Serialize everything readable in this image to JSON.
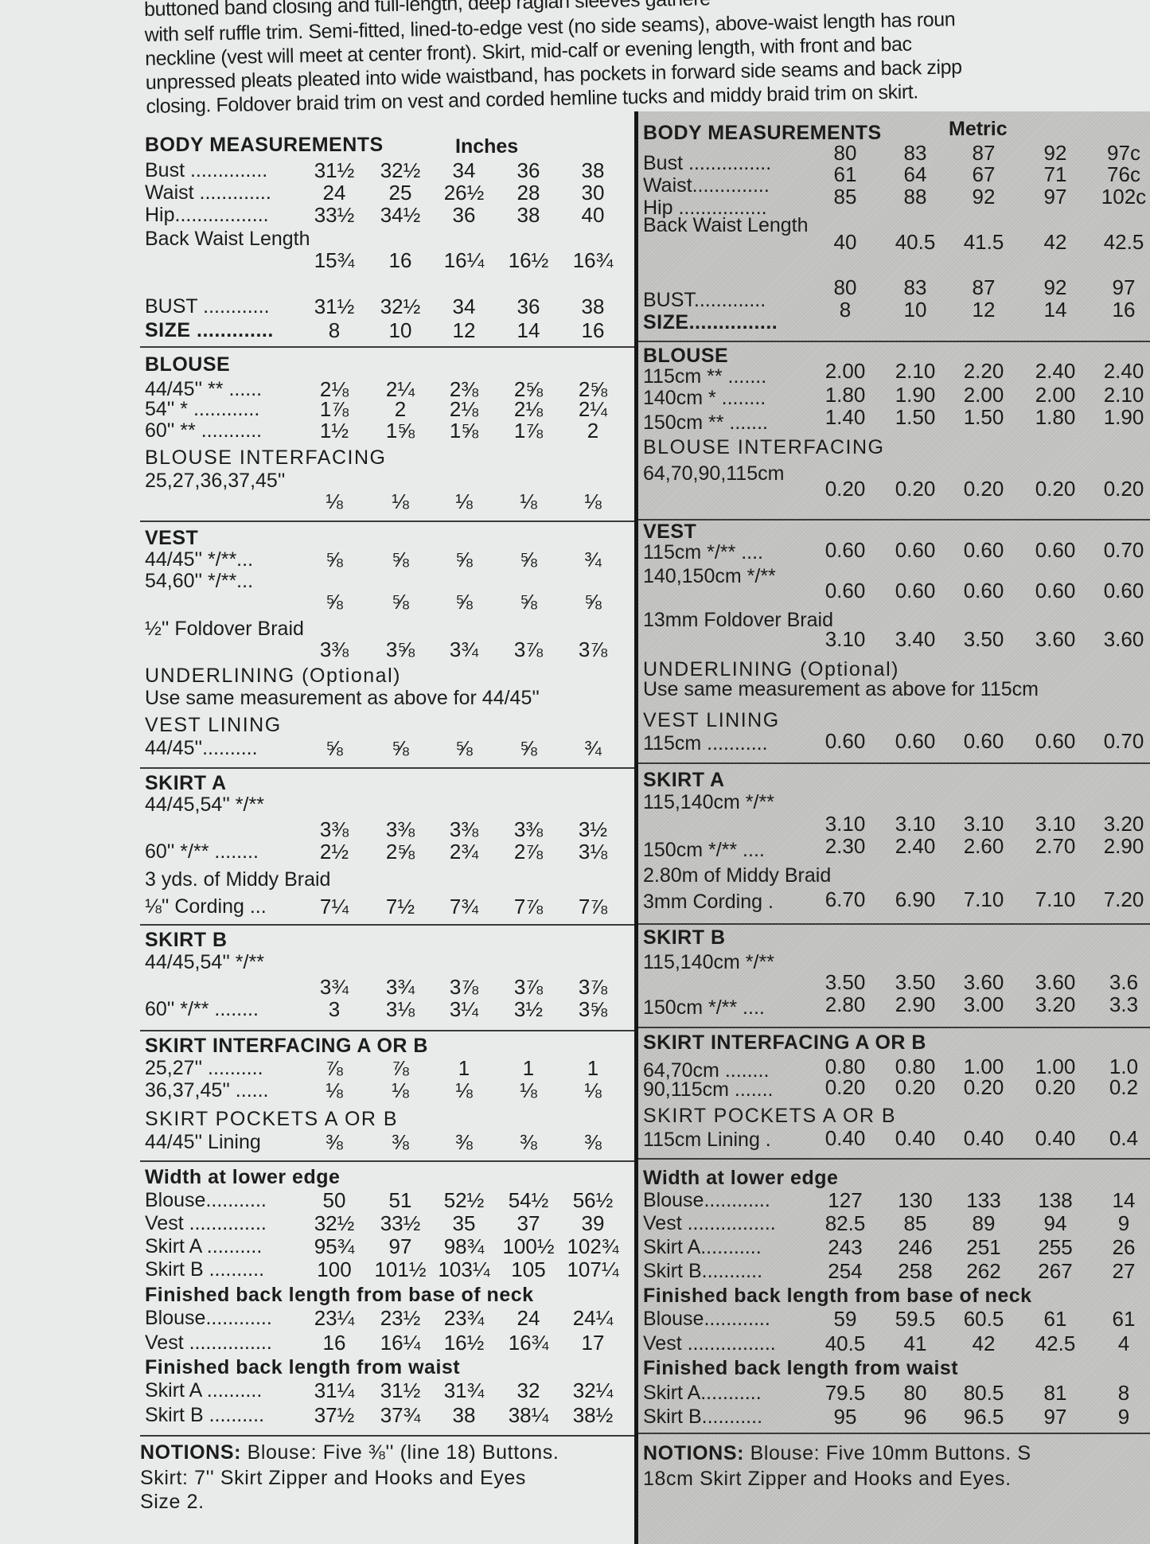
{
  "intro": {
    "lines": [
      "buttoned band closing and full-length, deep raglan sleeves gathere",
      "with self ruffle trim. Semi-fitted, lined-to-edge vest (no side seams), above-waist length has roun",
      "neckline (vest will meet at center front). Skirt, mid-calf or evening length, with front and bac",
      "unpressed pleats pleated into wide waistband, has pockets in forward side seams and back zipp",
      "closing. Foldover braid trim on vest and corded hemline tucks and middy braid trim on skirt."
    ]
  },
  "inches": {
    "unit": "Inches",
    "rows": [
      {
        "label": "BODY MEASUREMENTS",
        "kind": "section"
      },
      {
        "label": "Bust ..............",
        "values": [
          "31½",
          "32½",
          "34",
          "36",
          "38"
        ]
      },
      {
        "label": "Waist .............",
        "values": [
          "24",
          "25",
          "26½",
          "28",
          "30"
        ]
      },
      {
        "label": "Hip.................",
        "values": [
          "33½",
          "34½",
          "36",
          "38",
          "40"
        ]
      },
      {
        "label": "Back Waist Length",
        "values": [
          "15¾",
          "16",
          "16¼",
          "16½",
          "16¾"
        ]
      },
      {
        "label": "BUST ............",
        "values": [
          "31½",
          "32½",
          "34",
          "36",
          "38"
        ]
      },
      {
        "label": "SIZE .............",
        "kind": "section",
        "values": [
          "8",
          "10",
          "12",
          "14",
          "16"
        ]
      },
      {
        "label": "BLOUSE",
        "kind": "section"
      },
      {
        "label": "44/45'' ** ......",
        "values": [
          "2⅛",
          "2¼",
          "2⅜",
          "2⅝",
          "2⅝"
        ]
      },
      {
        "label": "54'' * ............",
        "values": [
          "1⅞",
          "2",
          "2⅛",
          "2⅛",
          "2¼"
        ]
      },
      {
        "label": "60'' ** ...........",
        "values": [
          "1½",
          "1⅝",
          "1⅝",
          "1⅞",
          "2"
        ]
      },
      {
        "label": "BLOUSE INTERFACING",
        "kind": "subsection"
      },
      {
        "label": "25,27,36,37,45''",
        "values": [
          "⅛",
          "⅛",
          "⅛",
          "⅛",
          "⅛"
        ]
      },
      {
        "label": "VEST",
        "kind": "section"
      },
      {
        "label": "44/45'' */**...",
        "values": [
          "⅝",
          "⅝",
          "⅝",
          "⅝",
          "¾"
        ]
      },
      {
        "label": "54,60'' */**...",
        "values": [
          "⅝",
          "⅝",
          "⅝",
          "⅝",
          "⅝"
        ]
      },
      {
        "label": "½'' Foldover Braid",
        "values": [
          "3⅜",
          "3⅝",
          "3¾",
          "3⅞",
          "3⅞"
        ]
      },
      {
        "label": "UNDERLINING (Optional)",
        "kind": "subsection"
      },
      {
        "label": "Use same measurement as above for 44/45''"
      },
      {
        "label": "VEST LINING",
        "kind": "subsection"
      },
      {
        "label": "44/45''..........",
        "values": [
          "⅝",
          "⅝",
          "⅝",
          "⅝",
          "¾"
        ]
      },
      {
        "label": "SKIRT A",
        "kind": "section"
      },
      {
        "label": "44/45,54'' */**",
        "values": [
          "3⅜",
          "3⅜",
          "3⅜",
          "3⅜",
          "3½"
        ]
      },
      {
        "label": "60'' */** ........",
        "values": [
          "2½",
          "2⅝",
          "2¾",
          "2⅞",
          "3⅛"
        ]
      },
      {
        "label": "3 yds. of Middy Braid"
      },
      {
        "label": "⅛'' Cording ...",
        "values": [
          "7¼",
          "7½",
          "7¾",
          "7⅞",
          "7⅞"
        ]
      },
      {
        "label": "SKIRT B",
        "kind": "section"
      },
      {
        "label": "44/45,54'' */**",
        "values": [
          "3¾",
          "3¾",
          "3⅞",
          "3⅞",
          "3⅞"
        ]
      },
      {
        "label": "60'' */** ........",
        "values": [
          "3",
          "3⅛",
          "3¼",
          "3½",
          "3⅝"
        ]
      },
      {
        "label": "SKIRT INTERFACING A OR B",
        "kind": "section"
      },
      {
        "label": "25,27'' ..........",
        "values": [
          "⅞",
          "⅞",
          "1",
          "1",
          "1"
        ]
      },
      {
        "label": "36,37,45'' ......",
        "values": [
          "⅛",
          "⅛",
          "⅛",
          "⅛",
          "⅛"
        ]
      },
      {
        "label": "SKIRT POCKETS A OR B",
        "kind": "subsection"
      },
      {
        "label": "44/45'' Lining",
        "values": [
          "⅜",
          "⅜",
          "⅜",
          "⅜",
          "⅜"
        ]
      },
      {
        "label": "Width at lower edge",
        "kind": "section"
      },
      {
        "label": "Blouse...........",
        "values": [
          "50",
          "51",
          "52½",
          "54½",
          "56½"
        ]
      },
      {
        "label": "Vest ..............",
        "values": [
          "32½",
          "33½",
          "35",
          "37",
          "39"
        ]
      },
      {
        "label": "Skirt A ..........",
        "values": [
          "95¾",
          "97",
          "98¾",
          "100½",
          "102¾"
        ]
      },
      {
        "label": "Skirt B ..........",
        "values": [
          "100",
          "101½",
          "103¼",
          "105",
          "107¼"
        ]
      },
      {
        "label": "Finished back length from base of neck",
        "kind": "section"
      },
      {
        "label": "Blouse............",
        "values": [
          "23¼",
          "23½",
          "23¾",
          "24",
          "24¼"
        ]
      },
      {
        "label": "Vest ...............",
        "values": [
          "16",
          "16¼",
          "16½",
          "16¾",
          "17"
        ]
      },
      {
        "label": "Finished back length from waist",
        "kind": "section"
      },
      {
        "label": "Skirt A ..........",
        "values": [
          "31¼",
          "31½",
          "31¾",
          "32",
          "32¼"
        ]
      },
      {
        "label": "Skirt B ..........",
        "values": [
          "37½",
          "37¾",
          "38",
          "38¼",
          "38½"
        ]
      }
    ],
    "notions": {
      "heading": "NOTIONS:",
      "lines": [
        "Blouse: Five ⅜'' (line 18) Buttons.",
        "Skirt: 7'' Skirt Zipper and Hooks and Eyes",
        "Size 2."
      ]
    }
  },
  "metric": {
    "unit": "Metric",
    "rows": [
      {
        "label": "BODY MEASUREMENTS",
        "kind": "section"
      },
      {
        "label": "Bust ...............",
        "values": [
          "80",
          "83",
          "87",
          "92",
          "97c"
        ]
      },
      {
        "label": "Waist..............",
        "values": [
          "61",
          "64",
          "67",
          "71",
          "76c"
        ]
      },
      {
        "label": "Hip ................",
        "values": [
          "85",
          "88",
          "92",
          "97",
          "102c"
        ]
      },
      {
        "label": "Back Waist Length",
        "values": [
          "40",
          "40.5",
          "41.5",
          "42",
          "42.5"
        ]
      },
      {
        "label": "BUST.............",
        "values": [
          "80",
          "83",
          "87",
          "92",
          "97"
        ]
      },
      {
        "label": "SIZE...............",
        "kind": "section",
        "values": [
          "8",
          "10",
          "12",
          "14",
          "16"
        ]
      },
      {
        "label": "BLOUSE",
        "kind": "section"
      },
      {
        "label": "115cm ** .......",
        "values": [
          "2.00",
          "2.10",
          "2.20",
          "2.40",
          "2.40"
        ]
      },
      {
        "label": "140cm * ........",
        "values": [
          "1.80",
          "1.90",
          "2.00",
          "2.00",
          "2.10"
        ]
      },
      {
        "label": "150cm ** .......",
        "values": [
          "1.40",
          "1.50",
          "1.50",
          "1.80",
          "1.90"
        ]
      },
      {
        "label": "BLOUSE INTERFACING",
        "kind": "subsection"
      },
      {
        "label": "64,70,90,115cm",
        "values": [
          "0.20",
          "0.20",
          "0.20",
          "0.20",
          "0.20"
        ]
      },
      {
        "label": "VEST",
        "kind": "section"
      },
      {
        "label": "115cm */** ....",
        "values": [
          "0.60",
          "0.60",
          "0.60",
          "0.60",
          "0.70"
        ]
      },
      {
        "label": "140,150cm */**",
        "values": [
          "0.60",
          "0.60",
          "0.60",
          "0.60",
          "0.60"
        ]
      },
      {
        "label": "13mm Foldover Braid",
        "values": [
          "3.10",
          "3.40",
          "3.50",
          "3.60",
          "3.60"
        ]
      },
      {
        "label": "UNDERLINING (Optional)",
        "kind": "subsection"
      },
      {
        "label": "Use same measurement as above for 115cm"
      },
      {
        "label": "VEST LINING",
        "kind": "subsection"
      },
      {
        "label": "115cm ...........",
        "values": [
          "0.60",
          "0.60",
          "0.60",
          "0.60",
          "0.70"
        ]
      },
      {
        "label": "SKIRT A",
        "kind": "section"
      },
      {
        "label": "115,140cm */**",
        "values": [
          "3.10",
          "3.10",
          "3.10",
          "3.10",
          "3.20"
        ]
      },
      {
        "label": "150cm */** ....",
        "values": [
          "2.30",
          "2.40",
          "2.60",
          "2.70",
          "2.90"
        ]
      },
      {
        "label": "2.80m of Middy Braid"
      },
      {
        "label": "3mm Cording .",
        "values": [
          "6.70",
          "6.90",
          "7.10",
          "7.10",
          "7.20"
        ]
      },
      {
        "label": "SKIRT B",
        "kind": "section"
      },
      {
        "label": "115,140cm */**",
        "values": [
          "3.50",
          "3.50",
          "3.60",
          "3.60",
          "3.6"
        ]
      },
      {
        "label": "150cm */** ....",
        "values": [
          "2.80",
          "2.90",
          "3.00",
          "3.20",
          "3.3"
        ]
      },
      {
        "label": "SKIRT INTERFACING A OR B",
        "kind": "section"
      },
      {
        "label": "64,70cm ........",
        "values": [
          "0.80",
          "0.80",
          "1.00",
          "1.00",
          "1.0"
        ]
      },
      {
        "label": "90,115cm .......",
        "values": [
          "0.20",
          "0.20",
          "0.20",
          "0.20",
          "0.2"
        ]
      },
      {
        "label": "SKIRT POCKETS A OR B",
        "kind": "subsection"
      },
      {
        "label": "115cm Lining .",
        "values": [
          "0.40",
          "0.40",
          "0.40",
          "0.40",
          "0.4"
        ]
      },
      {
        "label": "Width at lower edge",
        "kind": "section"
      },
      {
        "label": "Blouse............",
        "values": [
          "127",
          "130",
          "133",
          "138",
          "14"
        ]
      },
      {
        "label": "Vest ................",
        "values": [
          "82.5",
          "85",
          "89",
          "94",
          "9"
        ]
      },
      {
        "label": "Skirt A...........",
        "values": [
          "243",
          "246",
          "251",
          "255",
          "26"
        ]
      },
      {
        "label": "Skirt B...........",
        "values": [
          "254",
          "258",
          "262",
          "267",
          "27"
        ]
      },
      {
        "label": "Finished back length from base of neck",
        "kind": "section"
      },
      {
        "label": "Blouse............",
        "values": [
          "59",
          "59.5",
          "60.5",
          "61",
          "61"
        ]
      },
      {
        "label": "Vest ................",
        "values": [
          "40.5",
          "41",
          "42",
          "42.5",
          "4"
        ]
      },
      {
        "label": "Finished back length from waist",
        "kind": "section"
      },
      {
        "label": "Skirt A...........",
        "values": [
          "79.5",
          "80",
          "80.5",
          "81",
          "8"
        ]
      },
      {
        "label": "Skirt B...........",
        "values": [
          "95",
          "96",
          "96.5",
          "97",
          "9"
        ]
      }
    ],
    "notions": {
      "heading": "NOTIONS:",
      "lines": [
        "Blouse: Five 10mm Buttons. S",
        "18cm Skirt Zipper and Hooks and Eyes."
      ]
    }
  }
}
